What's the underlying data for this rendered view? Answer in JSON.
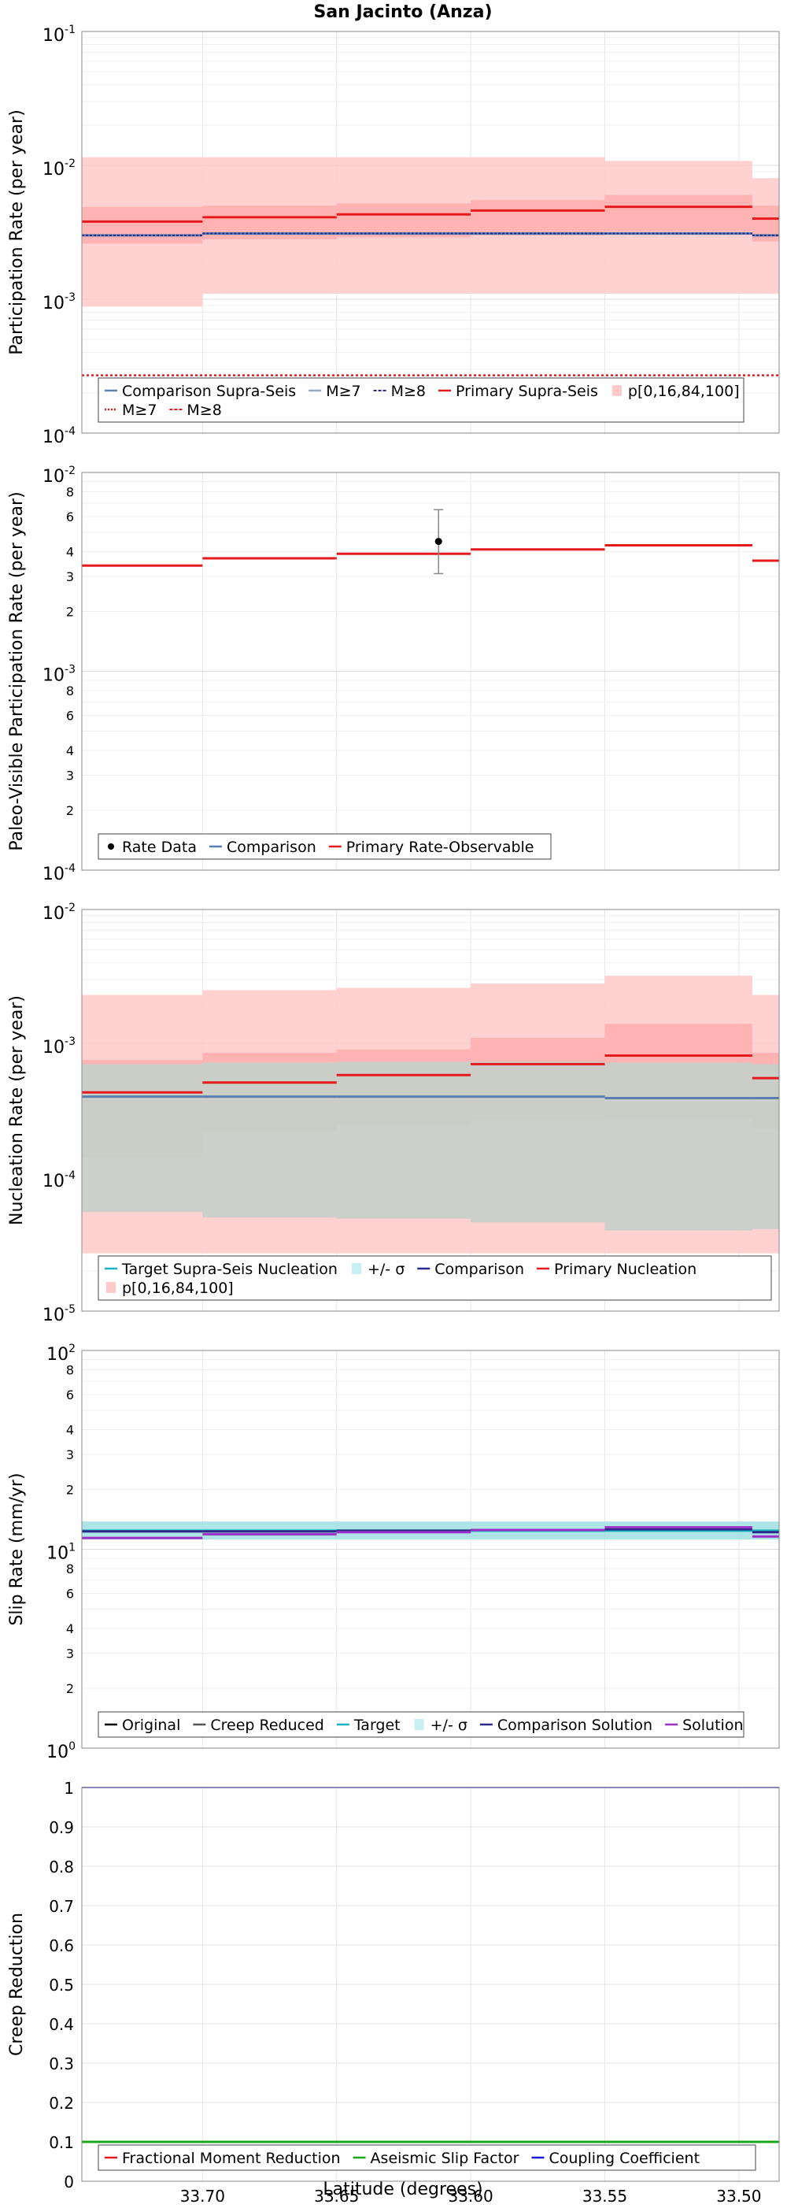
{
  "figure": {
    "title": "San Jacinto (Anza)",
    "xlabel": "Latitude (degrees)",
    "x_ticks": [
      33.7,
      33.65,
      33.6,
      33.55,
      33.5
    ],
    "x_tick_labels": [
      "33.70",
      "33.65",
      "33.60",
      "33.55",
      "33.50"
    ],
    "x_range": [
      33.745,
      33.485
    ],
    "segment_edges": [
      33.745,
      33.7,
      33.65,
      33.6,
      33.55,
      33.495,
      33.485
    ]
  },
  "colors": {
    "primary": "#e41a1c",
    "band_outer": "#ffc9c9",
    "band_inner": "#ff9a9a",
    "comparison": "#5a7fb0",
    "comparison_dark": "#2a2a8a",
    "target_band": "#9fe0e3",
    "target": "#19b4c0",
    "solution": "#9b30c8",
    "creep_reduced": "#555555",
    "green": "#1aa81a",
    "blue": "#1a1adc",
    "grid": "#e6e6e6",
    "nucl_comp_band": "#c5cfc9"
  },
  "chart_data": [
    {
      "id": "participation",
      "type": "line",
      "scale": "log",
      "ylabel": "Participation Rate (per year)",
      "ylim": [
        0.0001,
        0.1
      ],
      "y_tick_labels": [
        {
          "base": "10",
          "exp": "-4"
        },
        {
          "base": "10",
          "exp": "-3"
        },
        {
          "base": "10",
          "exp": "-2"
        },
        {
          "base": "10",
          "exp": "-1"
        }
      ],
      "series": [
        {
          "name": "Primary Supra-Seis",
          "kind": "step",
          "color": "#e41a1c",
          "values": [
            0.0038,
            0.0041,
            0.0043,
            0.0046,
            0.0049,
            0.004
          ]
        },
        {
          "name": "Comparison Supra-Seis",
          "kind": "step",
          "color": "#5a7fb0",
          "values": [
            0.003,
            0.0031,
            0.0031,
            0.0031,
            0.0031,
            0.003
          ]
        },
        {
          "name": "M≥7",
          "kind": "step",
          "color": "#2a2a8a",
          "dash": "3,2",
          "values": [
            0.003,
            0.0031,
            0.0031,
            0.0031,
            0.0031,
            0.003
          ]
        },
        {
          "name": "M≥8",
          "kind": "flat",
          "color": "#e41a1c",
          "dash": "3,3",
          "values": [
            0.00027
          ]
        }
      ],
      "bands": [
        {
          "name": "p[0,16,84,100]",
          "kind": "outer",
          "color": "#ffc9c9",
          "lower": [
            0.00088,
            0.0011,
            0.0011,
            0.0011,
            0.0011,
            0.0011
          ],
          "upper": [
            0.0115,
            0.0115,
            0.0115,
            0.0115,
            0.0108,
            0.008
          ]
        },
        {
          "name": "p[16,84]",
          "kind": "inner",
          "color": "#ff9a9a",
          "lower": [
            0.0026,
            0.0028,
            0.0029,
            0.003,
            0.0032,
            0.0027
          ],
          "upper": [
            0.0049,
            0.005,
            0.0052,
            0.0055,
            0.006,
            0.005
          ]
        }
      ],
      "legend": [
        {
          "label": "Comparison Supra-Seis",
          "style": "line",
          "color": "#5a7fb0"
        },
        {
          "label": "M≥7",
          "style": "line",
          "color": "#9aa8c8"
        },
        {
          "label": "M≥8",
          "style": "dash",
          "color": "#2a2a8a"
        },
        {
          "label": "Primary Supra-Seis",
          "style": "line",
          "color": "#e41a1c"
        },
        {
          "label": "p[0,16,84,100]",
          "style": "patch",
          "color": "#ffc9c9"
        },
        {
          "label": "M≥7",
          "style": "dot",
          "color": "#e41a1c"
        },
        {
          "label": "M≥8",
          "style": "dash",
          "color": "#e41a1c"
        }
      ]
    },
    {
      "id": "paleo",
      "type": "line",
      "scale": "log",
      "ylabel": "Paleo-Visible Participation Rate (per year)",
      "ylim": [
        0.0001,
        0.01
      ],
      "y_tick_labels": [
        {
          "base": "10",
          "exp": "-4"
        },
        {
          "base": "10",
          "exp": "-3"
        },
        {
          "base": "10",
          "exp": "-2"
        }
      ],
      "minor_labels": [
        "2",
        "3",
        "4",
        "6",
        "8"
      ],
      "series": [
        {
          "name": "Primary Rate-Observable",
          "kind": "step",
          "color": "#e41a1c",
          "values": [
            0.0034,
            0.0037,
            0.0039,
            0.0041,
            0.0043,
            0.0036
          ]
        }
      ],
      "points": [
        {
          "name": "Rate Data",
          "x": 33.612,
          "y": 0.0045,
          "ylow": 0.0031,
          "yhigh": 0.0065
        }
      ],
      "legend": [
        {
          "label": "Rate Data",
          "style": "point",
          "color": "#000000"
        },
        {
          "label": "Comparison",
          "style": "line",
          "color": "#5a7fb0"
        },
        {
          "label": "Primary Rate-Observable",
          "style": "line",
          "color": "#e41a1c"
        }
      ]
    },
    {
      "id": "nucleation",
      "type": "line",
      "scale": "log",
      "ylabel": "Nucleation Rate (per year)",
      "ylim": [
        1e-05,
        0.01
      ],
      "y_tick_labels": [
        {
          "base": "10",
          "exp": "-5"
        },
        {
          "base": "10",
          "exp": "-4"
        },
        {
          "base": "10",
          "exp": "-3"
        },
        {
          "base": "10",
          "exp": "-2"
        }
      ],
      "series": [
        {
          "name": "Primary Nucleation",
          "kind": "step",
          "color": "#e41a1c",
          "values": [
            0.00043,
            0.00051,
            0.00058,
            0.0007,
            0.00081,
            0.00055
          ]
        },
        {
          "name": "Target Supra-Seis Nucleation",
          "kind": "step",
          "color": "#5a7fb0",
          "values": [
            0.0004,
            0.0004,
            0.0004,
            0.0004,
            0.00039,
            0.00039
          ]
        }
      ],
      "bands": [
        {
          "name": "p[0,16,84,100]",
          "kind": "outer",
          "color": "#ffc9c9",
          "lower": [
            2.7e-05,
            2.7e-05,
            2.7e-05,
            2.7e-05,
            2.7e-05,
            2.7e-05
          ],
          "upper": [
            0.0023,
            0.0025,
            0.0026,
            0.0028,
            0.0032,
            0.0023
          ]
        },
        {
          "name": "p[16,84]",
          "kind": "inner",
          "color": "#ff9a9a",
          "lower": [
            0.00014,
            0.00022,
            0.00025,
            0.00027,
            0.00028,
            0.00023
          ],
          "upper": [
            0.00075,
            0.00085,
            0.0009,
            0.0011,
            0.0014,
            0.00085
          ]
        },
        {
          "name": "+/- σ",
          "kind": "grey",
          "color": "#c5cfc9",
          "lower": [
            5.5e-05,
            5e-05,
            4.9e-05,
            4.6e-05,
            4e-05,
            4.1e-05
          ],
          "upper": [
            0.0007,
            0.00072,
            0.00073,
            0.00073,
            0.00072,
            0.0007
          ]
        }
      ],
      "legend": [
        {
          "label": "Target Supra-Seis Nucleation",
          "style": "line",
          "color": "#19b4c0"
        },
        {
          "label": "+/- σ",
          "style": "patch",
          "color": "#c8f0f2"
        },
        {
          "label": "Comparison",
          "style": "line",
          "color": "#2a2a8a"
        },
        {
          "label": "Primary Nucleation",
          "style": "line",
          "color": "#e41a1c"
        },
        {
          "label": "p[0,16,84,100]",
          "style": "patch",
          "color": "#ffc9c9"
        }
      ]
    },
    {
      "id": "slip",
      "type": "line",
      "scale": "log",
      "ylabel": "Slip Rate (mm/yr)",
      "ylim": [
        1,
        100
      ],
      "y_tick_labels": [
        {
          "base": "10",
          "exp": "0"
        },
        {
          "base": "10",
          "exp": "1"
        },
        {
          "base": "10",
          "exp": "2"
        }
      ],
      "minor_labels": [
        "2",
        "3",
        "4",
        "6",
        "8"
      ],
      "series": [
        {
          "name": "Target",
          "kind": "step",
          "color": "#19b4c0",
          "values": [
            12.4,
            12.4,
            12.4,
            12.4,
            12.4,
            12.4
          ]
        },
        {
          "name": "Comparison Solution",
          "kind": "step",
          "color": "#2a2a8a",
          "values": [
            12.3,
            12.3,
            12.4,
            12.5,
            12.6,
            12.2
          ]
        },
        {
          "name": "Solution",
          "kind": "step",
          "color": "#9b30c8",
          "values": [
            11.4,
            11.9,
            12.2,
            12.5,
            12.9,
            11.6
          ]
        }
      ],
      "bands": [
        {
          "name": "+/- σ",
          "kind": "target",
          "color": "#9fe0e3",
          "lower": [
            11.2,
            11.2,
            11.2,
            11.2,
            11.2,
            11.2
          ],
          "upper": [
            13.8,
            13.8,
            13.8,
            13.8,
            13.8,
            13.8
          ]
        }
      ],
      "legend": [
        {
          "label": "Original",
          "style": "line",
          "color": "#000000"
        },
        {
          "label": "Creep Reduced",
          "style": "line",
          "color": "#555555"
        },
        {
          "label": "Target",
          "style": "line",
          "color": "#19b4c0"
        },
        {
          "label": "+/- σ",
          "style": "patch",
          "color": "#c8f0f2"
        },
        {
          "label": "Comparison Solution",
          "style": "line",
          "color": "#2a2a8a"
        },
        {
          "label": "Solution",
          "style": "line",
          "color": "#9b30c8"
        }
      ]
    },
    {
      "id": "creep",
      "type": "line",
      "scale": "linear",
      "ylabel": "Creep Reduction",
      "ylim": [
        0,
        1
      ],
      "y_ticks": [
        0,
        0.1,
        0.2,
        0.3,
        0.4,
        0.5,
        0.6,
        0.7,
        0.8,
        0.9,
        1
      ],
      "y_tick_labels": [
        "0",
        "0.1",
        "0.2",
        "0.3",
        "0.4",
        "0.5",
        "0.6",
        "0.7",
        "0.8",
        "0.9",
        "1"
      ],
      "series": [
        {
          "name": "Aseismic Slip Factor",
          "kind": "flat",
          "color": "#1aa81a",
          "width": 3,
          "values": [
            0.1
          ]
        },
        {
          "name": "Coupling Coefficient",
          "kind": "flat",
          "color": "#1a1adc",
          "width": 1.5,
          "values": [
            1.0
          ]
        }
      ],
      "legend": [
        {
          "label": "Fractional Moment Reduction",
          "style": "line",
          "color": "#e41a1c"
        },
        {
          "label": "Aseismic Slip Factor",
          "style": "line",
          "color": "#1aa81a"
        },
        {
          "label": "Coupling Coefficient",
          "style": "line",
          "color": "#1a1adc"
        }
      ]
    }
  ]
}
